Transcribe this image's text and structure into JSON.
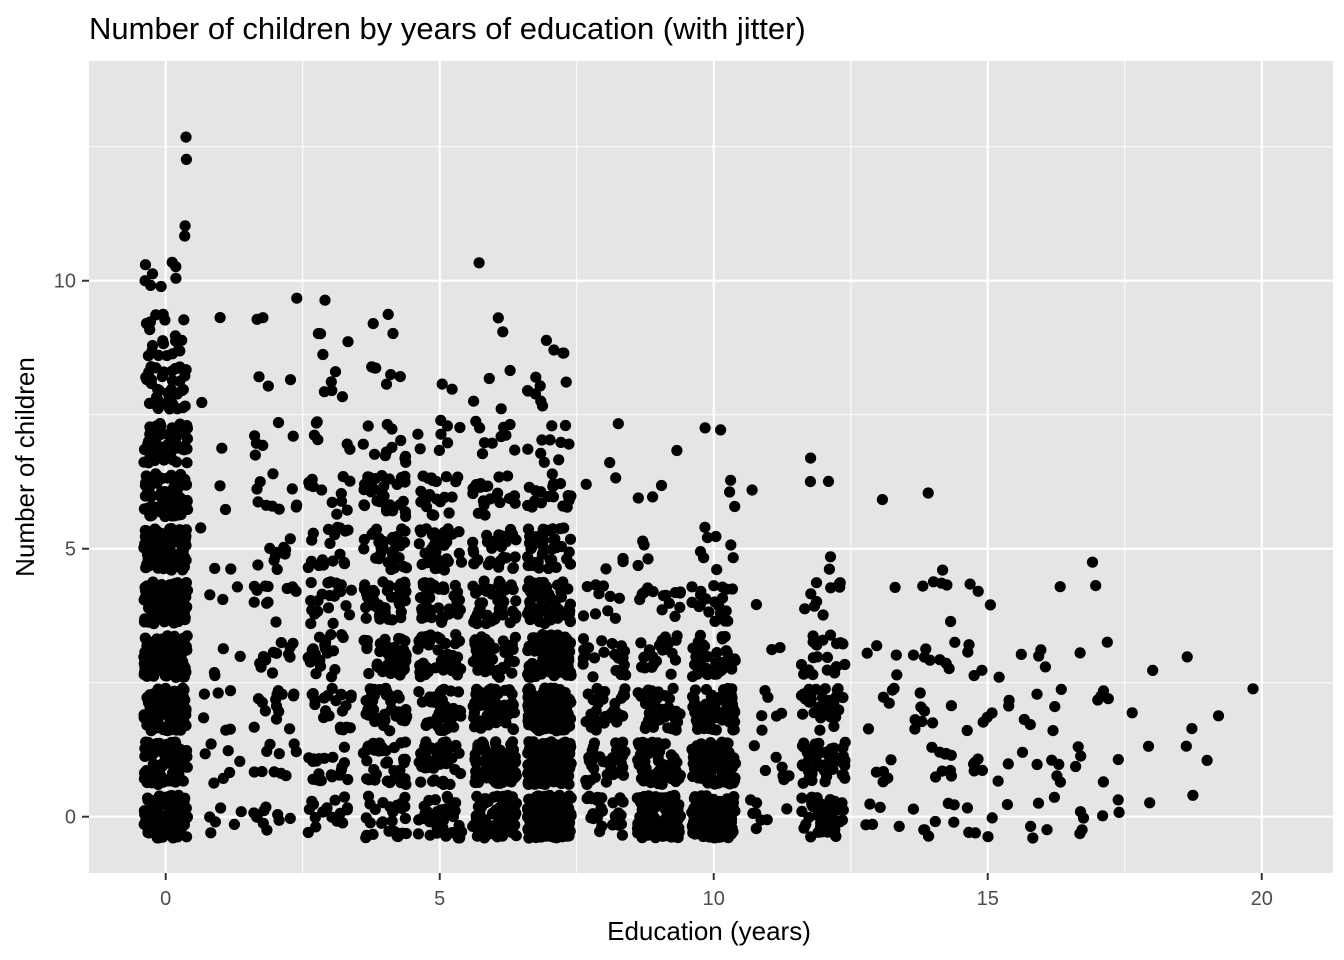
{
  "chart_data": {
    "type": "scatter",
    "title": "Number of children by years of education (with jitter)",
    "xlabel": "Education (years)",
    "ylabel": "Number of children",
    "xlim": [
      -1.4,
      21.3
    ],
    "ylim": [
      -1.05,
      14.1
    ],
    "xticks": [
      0,
      5,
      10,
      15,
      20
    ],
    "yticks": [
      0,
      5,
      10
    ],
    "grid": true,
    "legend": "none",
    "colors": {
      "panel": "#e5e5e5",
      "grid": "#ffffff",
      "point": "#000000",
      "tick_text": "#4d4d4d"
    },
    "jitter": {
      "x": 0.4,
      "y": 0.4
    },
    "count_groups": [
      {
        "x": 0,
        "counts": [
          110,
          95,
          90,
          110,
          115,
          100,
          85,
          70,
          40,
          20,
          8,
          2,
          1,
          1
        ]
      },
      {
        "x": 1,
        "counts": [
          6,
          7,
          6,
          4,
          3,
          3,
          2,
          1,
          1,
          1,
          0
        ]
      },
      {
        "x": 2,
        "counts": [
          10,
          10,
          14,
          12,
          12,
          10,
          10,
          6,
          3,
          2,
          1
        ]
      },
      {
        "x": 3,
        "counts": [
          18,
          20,
          22,
          22,
          22,
          18,
          12,
          6,
          5,
          4,
          1
        ]
      },
      {
        "x": 4,
        "counts": [
          30,
          32,
          38,
          40,
          38,
          34,
          30,
          12,
          6,
          3
        ]
      },
      {
        "x": 5,
        "counts": [
          40,
          44,
          42,
          42,
          40,
          34,
          20,
          8,
          2
        ]
      },
      {
        "x": 6,
        "counts": [
          80,
          70,
          60,
          52,
          44,
          34,
          20,
          10,
          4,
          2,
          1
        ]
      },
      {
        "x": 7,
        "counts": [
          220,
          200,
          140,
          110,
          60,
          40,
          20,
          10,
          8,
          4
        ]
      },
      {
        "x": 8,
        "counts": [
          30,
          34,
          32,
          22,
          10,
          3,
          2,
          2
        ]
      },
      {
        "x": 9,
        "counts": [
          110,
          60,
          40,
          24,
          14,
          4,
          3,
          1
        ]
      },
      {
        "x": 10,
        "counts": [
          130,
          120,
          80,
          40,
          20,
          8,
          3,
          2
        ]
      },
      {
        "x": 11,
        "counts": [
          8,
          8,
          6,
          2,
          1,
          0,
          1
        ]
      },
      {
        "x": 12,
        "counts": [
          50,
          55,
          34,
          20,
          10,
          2,
          2,
          1
        ]
      },
      {
        "x": 13,
        "counts": [
          5,
          5,
          5,
          4,
          1,
          0,
          1
        ]
      },
      {
        "x": 14,
        "counts": [
          8,
          9,
          8,
          8,
          5,
          1,
          1
        ]
      },
      {
        "x": 15,
        "counts": [
          6,
          7,
          6,
          5,
          3,
          0,
          0
        ]
      },
      {
        "x": 16,
        "counts": [
          5,
          6,
          6,
          4,
          1,
          0,
          0
        ]
      },
      {
        "x": 17,
        "counts": [
          7,
          5,
          4,
          2,
          1,
          1
        ]
      },
      {
        "x": 18,
        "counts": [
          1,
          1,
          1,
          1
        ]
      },
      {
        "x": 19,
        "counts": [
          1,
          2,
          2,
          1
        ]
      },
      {
        "x": 20,
        "counts": [
          0,
          0,
          1
        ]
      }
    ]
  }
}
